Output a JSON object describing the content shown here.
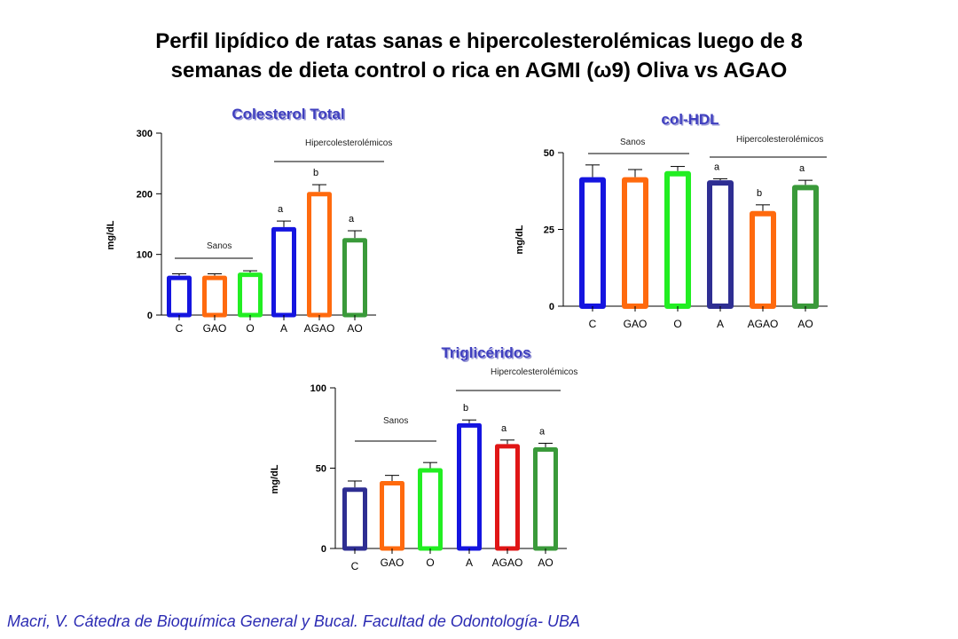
{
  "page": {
    "title_line1": "Perfil lipídico de ratas sanas e hipercolesterolémicas luego de 8",
    "title_line2": "semanas de dieta control o rica en AGMI (ω9) Oliva vs AGAO",
    "footer": "Macri, V. Cátedra de Bioquímica General y Bucal. Facultad de Odontología- UBA"
  },
  "colors": {
    "C": "#1515e0",
    "GAO": "#ff6a0e",
    "O": "#22ee22",
    "A": "#1515e0",
    "AGAO": "#ff6a0e",
    "AO": "#3a9a3a",
    "dark_blue": "#2e2e92",
    "red": "#e01616",
    "title_blue": "#3f3fbf"
  },
  "chart_data": [
    {
      "type": "bar",
      "title": "Colesterol Total",
      "ylabel": "mg/dL",
      "ylim": [
        0,
        300
      ],
      "yticks": [
        0,
        100,
        200,
        300
      ],
      "categories": [
        "C",
        "GAO",
        "O",
        "A",
        "AGAO",
        "AO"
      ],
      "values": [
        65,
        65,
        70,
        145,
        203,
        127
      ],
      "errors": [
        3,
        3,
        3,
        10,
        12,
        12
      ],
      "significance": [
        "",
        "",
        "",
        "a",
        "b",
        "a"
      ],
      "bar_colors": [
        "C",
        "GAO",
        "O",
        "A",
        "AGAO",
        "AO"
      ],
      "groups": [
        {
          "label": "Sanos",
          "from": 0,
          "to": 2
        },
        {
          "label": "Hipercolesterolémicos",
          "from": 3,
          "to": 5
        }
      ]
    },
    {
      "type": "bar",
      "title": "col-HDL",
      "ylabel": "mg/dL",
      "ylim": [
        0,
        50
      ],
      "yticks": [
        0,
        25,
        50
      ],
      "categories": [
        "C",
        "GAO",
        "O",
        "A",
        "AGAO",
        "AO"
      ],
      "values": [
        42,
        42,
        44,
        41,
        31,
        39.5
      ],
      "errors": [
        4,
        2.5,
        1.5,
        0.5,
        2,
        1.5
      ],
      "significance": [
        "",
        "",
        "",
        "a",
        "b",
        "a"
      ],
      "bar_colors": [
        "C",
        "GAO",
        "O",
        "dark_blue",
        "AGAO",
        "AO"
      ],
      "groups": [
        {
          "label": "Sanos",
          "from": 0,
          "to": 2
        },
        {
          "label": "Hipercolesterolémicos",
          "from": 3,
          "to": 5
        }
      ]
    },
    {
      "type": "bar",
      "title": "Triglicéridos",
      "ylabel": "mg/dL",
      "ylim": [
        0,
        100
      ],
      "yticks": [
        0,
        50,
        100
      ],
      "categories": [
        "C",
        "GAO",
        "O",
        "A",
        "AGAO",
        "AO"
      ],
      "values": [
        38,
        42,
        50,
        78,
        65,
        63
      ],
      "errors": [
        4,
        3.5,
        3.5,
        2,
        2.5,
        2.5
      ],
      "significance": [
        "",
        "",
        "",
        "b",
        "a",
        "a"
      ],
      "bar_colors": [
        "dark_blue",
        "GAO",
        "O",
        "A",
        "red",
        "AO"
      ],
      "groups": [
        {
          "label": "Sanos",
          "from": 0,
          "to": 2
        },
        {
          "label": "Hipercolesterolémicos",
          "from": 3,
          "to": 5
        }
      ]
    }
  ]
}
